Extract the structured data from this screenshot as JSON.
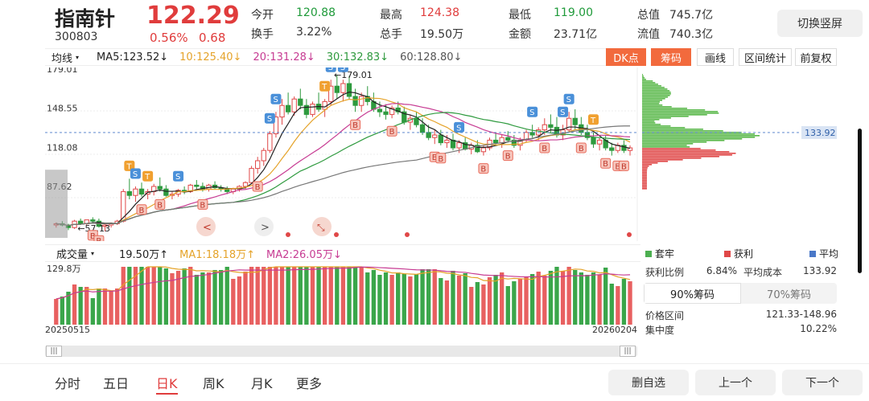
{
  "header": {
    "name": "指南针",
    "code": "300803",
    "price": "122.29",
    "change_pct": "0.56%",
    "change": "0.68",
    "stats": [
      {
        "label": "今开",
        "value": "120.88",
        "color": "green"
      },
      {
        "label": "最高",
        "value": "124.38",
        "color": "red"
      },
      {
        "label": "最低",
        "value": "119.00",
        "color": "green"
      },
      {
        "label": "总值",
        "value": "745.7亿",
        "color": "dark"
      },
      {
        "label": "换手",
        "value": "3.22%",
        "color": "dark"
      },
      {
        "label": "总手",
        "value": "19.50万",
        "color": "dark"
      },
      {
        "label": "金额",
        "value": "23.71亿",
        "color": "dark"
      },
      {
        "label": "流值",
        "value": "740.3亿",
        "color": "dark"
      }
    ],
    "switch_label": "切换竖屏"
  },
  "ma_bar": {
    "selector": "均线",
    "items": [
      {
        "label": "MA5:123.52↓",
        "color": "#222222"
      },
      {
        "label": "10:125.40↓",
        "color": "#e5a32a"
      },
      {
        "label": "20:131.28↓",
        "color": "#c73c93"
      },
      {
        "label": "30:132.83↓",
        "color": "#2e9a3e"
      },
      {
        "label": "60:128.80↓",
        "color": "#555555"
      }
    ]
  },
  "tools": {
    "dk": "DK点",
    "chouma": "筹码",
    "huaxian": "画线",
    "qujian": "区间统计",
    "fuquan": "前复权"
  },
  "kline": {
    "y_labels": [
      "179.01",
      "148.55",
      "118.08",
      "87.62"
    ],
    "max_annotation": "←179.01",
    "min_annotation": "←57.13",
    "current_price_tag": "133.92",
    "candles": [
      [
        62,
        64,
        60,
        63
      ],
      [
        63,
        65,
        61,
        62
      ],
      [
        62,
        63,
        58,
        60
      ],
      [
        60,
        66,
        59,
        65
      ],
      [
        65,
        67,
        62,
        63
      ],
      [
        63,
        66,
        62,
        66
      ],
      [
        66,
        68,
        64,
        65
      ],
      [
        65,
        67,
        60,
        61
      ],
      [
        61,
        63,
        57,
        62
      ],
      [
        62,
        64,
        60,
        63
      ],
      [
        63,
        66,
        62,
        65
      ],
      [
        65,
        90,
        64,
        88
      ],
      [
        88,
        98,
        82,
        85
      ],
      [
        85,
        92,
        80,
        90
      ],
      [
        90,
        95,
        84,
        86
      ],
      [
        86,
        90,
        82,
        88
      ],
      [
        88,
        94,
        85,
        92
      ],
      [
        92,
        99,
        88,
        90
      ],
      [
        90,
        93,
        84,
        85
      ],
      [
        85,
        88,
        82,
        86
      ],
      [
        86,
        90,
        84,
        89
      ],
      [
        89,
        92,
        86,
        88
      ],
      [
        88,
        94,
        87,
        93
      ],
      [
        93,
        97,
        90,
        92
      ],
      [
        92,
        95,
        88,
        90
      ],
      [
        90,
        94,
        88,
        93
      ],
      [
        93,
        96,
        90,
        91
      ],
      [
        91,
        93,
        88,
        90
      ],
      [
        90,
        92,
        86,
        88
      ],
      [
        88,
        91,
        86,
        90
      ],
      [
        90,
        93,
        88,
        92
      ],
      [
        92,
        96,
        90,
        95
      ],
      [
        95,
        108,
        94,
        106
      ],
      [
        106,
        115,
        102,
        112
      ],
      [
        112,
        122,
        108,
        120
      ],
      [
        120,
        135,
        118,
        133
      ],
      [
        133,
        150,
        130,
        146
      ],
      [
        146,
        160,
        140,
        155
      ],
      [
        155,
        165,
        148,
        150
      ],
      [
        150,
        162,
        147,
        160
      ],
      [
        160,
        168,
        152,
        155
      ],
      [
        155,
        160,
        145,
        148
      ],
      [
        148,
        158,
        146,
        156
      ],
      [
        156,
        165,
        150,
        152
      ],
      [
        152,
        160,
        146,
        158
      ],
      [
        158,
        175,
        155,
        170
      ],
      [
        170,
        179,
        160,
        165
      ],
      [
        165,
        175,
        158,
        172
      ],
      [
        172,
        178,
        160,
        162
      ],
      [
        162,
        168,
        150,
        155
      ],
      [
        155,
        165,
        150,
        162
      ],
      [
        162,
        170,
        155,
        158
      ],
      [
        158,
        165,
        150,
        152
      ],
      [
        152,
        158,
        146,
        150
      ],
      [
        150,
        156,
        144,
        148
      ],
      [
        148,
        155,
        145,
        153
      ],
      [
        153,
        158,
        148,
        150
      ],
      [
        150,
        154,
        140,
        142
      ],
      [
        142,
        148,
        136,
        145
      ],
      [
        145,
        150,
        138,
        140
      ],
      [
        140,
        145,
        132,
        134
      ],
      [
        134,
        140,
        128,
        130
      ],
      [
        130,
        136,
        125,
        132
      ],
      [
        132,
        136,
        124,
        126
      ],
      [
        126,
        132,
        122,
        128
      ],
      [
        128,
        133,
        120,
        122
      ],
      [
        122,
        128,
        118,
        126
      ],
      [
        126,
        130,
        120,
        121
      ],
      [
        121,
        126,
        117,
        124
      ],
      [
        124,
        128,
        118,
        119
      ],
      [
        119,
        124,
        116,
        122
      ],
      [
        122,
        130,
        120,
        128
      ],
      [
        128,
        134,
        124,
        126
      ],
      [
        126,
        132,
        122,
        130
      ],
      [
        130,
        135,
        126,
        128
      ],
      [
        128,
        132,
        122,
        124
      ],
      [
        124,
        130,
        120,
        128
      ],
      [
        128,
        136,
        126,
        134
      ],
      [
        134,
        140,
        130,
        132
      ],
      [
        132,
        138,
        128,
        136
      ],
      [
        136,
        145,
        132,
        140
      ],
      [
        140,
        148,
        134,
        138
      ],
      [
        138,
        146,
        130,
        132
      ],
      [
        132,
        140,
        128,
        136
      ],
      [
        136,
        150,
        134,
        145
      ],
      [
        145,
        152,
        136,
        140
      ],
      [
        140,
        146,
        132,
        134
      ],
      [
        134,
        140,
        128,
        130
      ],
      [
        130,
        134,
        122,
        125
      ],
      [
        125,
        130,
        120,
        128
      ],
      [
        128,
        132,
        120,
        122
      ],
      [
        122,
        126,
        116,
        120
      ],
      [
        120,
        126,
        118,
        124
      ],
      [
        124,
        128,
        118,
        120
      ],
      [
        120,
        124,
        116,
        122
      ]
    ]
  },
  "volume_bar": {
    "selector": "成交量",
    "items": [
      {
        "label": "19.50万↑",
        "color": "#222222"
      },
      {
        "label": "MA1:18.18万↑",
        "color": "#e5a32a"
      },
      {
        "label": "MA2:26.05万↓",
        "color": "#c73c93"
      }
    ],
    "y_label": "129.8万",
    "start_date": "20250515",
    "end_date": "20260204"
  },
  "chip_panel": {
    "legend": [
      {
        "label": "套牢",
        "color": "#4caf50"
      },
      {
        "label": "获利",
        "color": "#e04848"
      },
      {
        "label": "平均",
        "color": "#4a78c8"
      }
    ],
    "profit_ratio_label": "获利比例",
    "profit_ratio": "6.84%",
    "avg_cost_label": "平均成本",
    "avg_cost": "133.92",
    "tab_90": "90%筹码",
    "tab_70": "70%筹码",
    "range_label": "价格区间",
    "range_value": "121.33-148.96",
    "concentration_label": "集中度",
    "concentration_value": "10.22%"
  },
  "bottom": {
    "tabs": [
      "分时",
      "五日",
      "日K",
      "周K",
      "月K",
      "更多"
    ],
    "active": "日K",
    "delete_btn": "删自选",
    "prev_btn": "上一个",
    "next_btn": "下一个"
  }
}
